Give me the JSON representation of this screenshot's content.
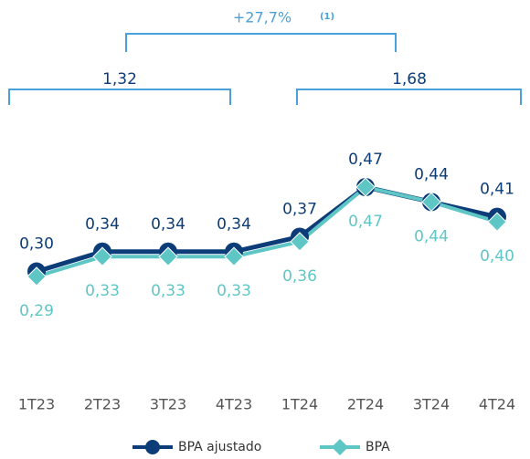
{
  "chart_data": {
    "type": "line",
    "categories": [
      "1T23",
      "2T23",
      "3T23",
      "4T23",
      "1T24",
      "2T24",
      "3T24",
      "4T24"
    ],
    "series": [
      {
        "name": "BPA ajustado",
        "color": "#0c3d78",
        "values": [
          0.3,
          0.34,
          0.34,
          0.34,
          0.37,
          0.47,
          0.44,
          0.41
        ],
        "value_labels": [
          "0,30",
          "0,34",
          "0,34",
          "0,34",
          "0,37",
          "0,47",
          "0,44",
          "0,41"
        ]
      },
      {
        "name": "BPA",
        "color": "#5fc6c6",
        "values": [
          0.29,
          0.33,
          0.33,
          0.33,
          0.36,
          0.47,
          0.44,
          0.4
        ],
        "value_labels": [
          "0,29",
          "0,33",
          "0,33",
          "0,33",
          "0,36",
          "0,47",
          "0,44",
          "0,40"
        ]
      }
    ],
    "annotations": [
      "+27,7%",
      "(1)",
      "1,32",
      "1,68"
    ]
  }
}
